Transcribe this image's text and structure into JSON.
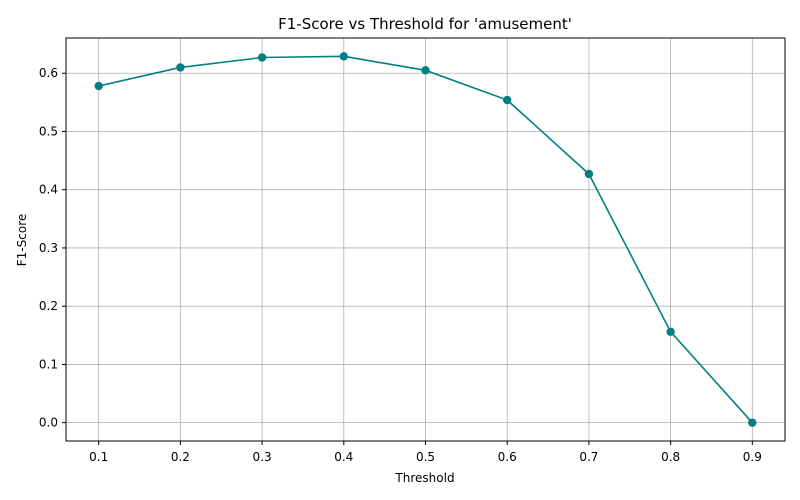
{
  "chart_data": {
    "type": "line",
    "title": "F1-Score vs Threshold for 'amusement'",
    "xlabel": "Threshold",
    "ylabel": "F1-Score",
    "x": [
      0.1,
      0.2,
      0.3,
      0.4,
      0.5,
      0.6,
      0.7,
      0.8,
      0.9
    ],
    "series": [
      {
        "values": [
          0.578,
          0.61,
          0.627,
          0.629,
          0.605,
          0.554,
          0.427,
          0.156,
          0.0
        ],
        "color": "#008080",
        "marker": "circle"
      }
    ],
    "xlim": [
      0.06,
      0.94
    ],
    "ylim": [
      -0.0315,
      0.6605
    ],
    "xticks": [
      "0.1",
      "0.2",
      "0.3",
      "0.4",
      "0.5",
      "0.6",
      "0.7",
      "0.8",
      "0.9"
    ],
    "yticks": [
      "0.0",
      "0.1",
      "0.2",
      "0.3",
      "0.4",
      "0.5",
      "0.6"
    ],
    "grid": true,
    "legend": "none"
  }
}
